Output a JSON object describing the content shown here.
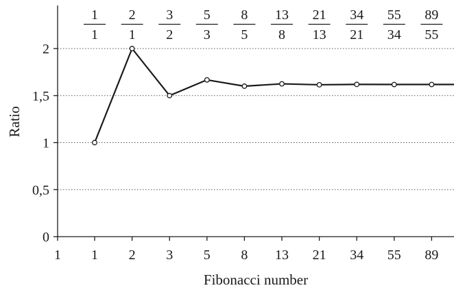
{
  "chart_data": {
    "type": "line",
    "xlabel": "Fibonacci number",
    "ylabel": "Ratio",
    "x_tick_labels": [
      "1",
      "1",
      "2",
      "3",
      "5",
      "8",
      "13",
      "21",
      "34",
      "55",
      "89"
    ],
    "ylim": [
      0,
      2.5
    ],
    "y_ticks": [
      {
        "value": 0,
        "label": "0"
      },
      {
        "value": 0.5,
        "label": "0,5"
      },
      {
        "value": 1,
        "label": "1"
      },
      {
        "value": 1.5,
        "label": "1,5"
      },
      {
        "value": 2,
        "label": "2"
      }
    ],
    "grid": "horizontal dotted",
    "series": [
      {
        "x": [
          "1",
          "2",
          "3",
          "5",
          "8",
          "13",
          "21",
          "34",
          "55",
          "89"
        ],
        "values": [
          1,
          2,
          1.5,
          1.667,
          1.6,
          1.625,
          1.615,
          1.619,
          1.618,
          1.618
        ],
        "fractions": [
          {
            "num": "1",
            "den": "1"
          },
          {
            "num": "2",
            "den": "1"
          },
          {
            "num": "3",
            "den": "2"
          },
          {
            "num": "5",
            "den": "3"
          },
          {
            "num": "8",
            "den": "5"
          },
          {
            "num": "13",
            "den": "8"
          },
          {
            "num": "21",
            "den": "13"
          },
          {
            "num": "34",
            "den": "21"
          },
          {
            "num": "55",
            "den": "34"
          },
          {
            "num": "89",
            "den": "55"
          }
        ]
      }
    ],
    "line_color": "#1a1a1a",
    "grid_color": "#555555"
  }
}
